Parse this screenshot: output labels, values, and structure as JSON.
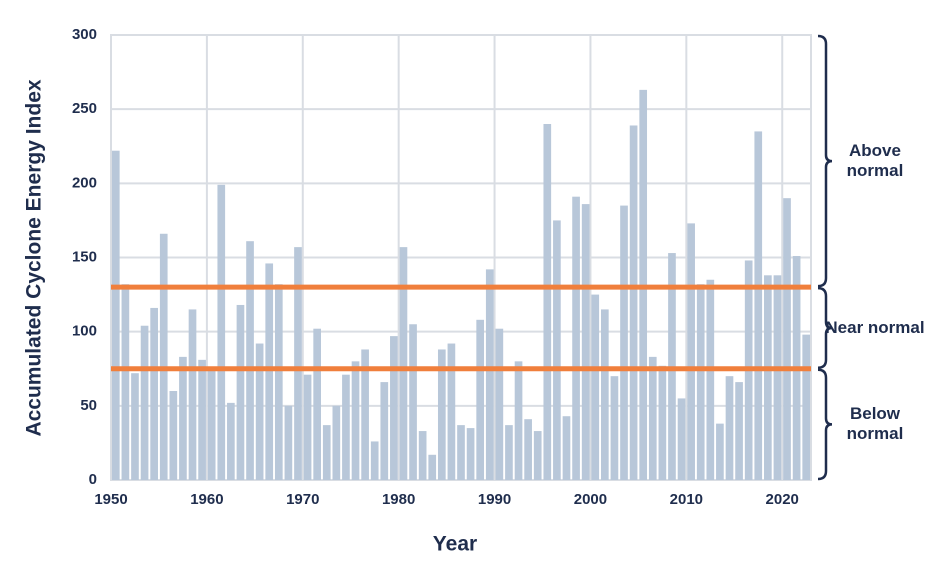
{
  "chart_data": {
    "type": "bar",
    "x_label": "Year",
    "y_label": "Accumulated Cyclone Energy Index",
    "x": [
      1950,
      1951,
      1952,
      1953,
      1954,
      1955,
      1956,
      1957,
      1958,
      1959,
      1960,
      1961,
      1962,
      1963,
      1964,
      1965,
      1966,
      1967,
      1968,
      1969,
      1970,
      1971,
      1972,
      1973,
      1974,
      1975,
      1976,
      1977,
      1978,
      1979,
      1980,
      1981,
      1982,
      1983,
      1984,
      1985,
      1986,
      1987,
      1988,
      1989,
      1990,
      1991,
      1992,
      1993,
      1994,
      1995,
      1996,
      1997,
      1998,
      1999,
      2000,
      2001,
      2002,
      2003,
      2004,
      2005,
      2006,
      2007,
      2008,
      2009,
      2010,
      2011,
      2012,
      2013,
      2014,
      2015,
      2016,
      2017,
      2018,
      2019,
      2020,
      2021,
      2022
    ],
    "values": [
      222,
      132,
      72,
      104,
      116,
      166,
      60,
      83,
      115,
      81,
      76,
      199,
      52,
      118,
      161,
      92,
      146,
      132,
      50,
      157,
      71,
      102,
      37,
      50,
      71,
      80,
      88,
      26,
      66,
      97,
      157,
      105,
      33,
      17,
      88,
      92,
      37,
      35,
      108,
      142,
      102,
      37,
      80,
      41,
      33,
      240,
      175,
      43,
      191,
      186,
      125,
      115,
      70,
      185,
      239,
      263,
      83,
      77,
      153,
      55,
      173,
      132,
      135,
      38,
      70,
      66,
      148,
      235,
      138,
      138,
      190,
      151,
      98
    ],
    "color": "#b8c7d9",
    "xlim": [
      1950,
      2023
    ],
    "xticks": [
      1950,
      1960,
      1970,
      1980,
      1990,
      2000,
      2010,
      2020
    ],
    "ylim": [
      0,
      300
    ],
    "yticks": [
      0,
      50,
      100,
      150,
      200,
      250,
      300
    ],
    "grid": true,
    "reference_lines": [
      {
        "value": 130,
        "color": "#f07f3c"
      },
      {
        "value": 75,
        "color": "#f07f3c"
      }
    ],
    "ranges": [
      {
        "label": "Above normal",
        "from": 130,
        "to": 300
      },
      {
        "label": "Near normal",
        "from": 75,
        "to": 130
      },
      {
        "label": "Below normal",
        "from": 0,
        "to": 75
      }
    ]
  }
}
